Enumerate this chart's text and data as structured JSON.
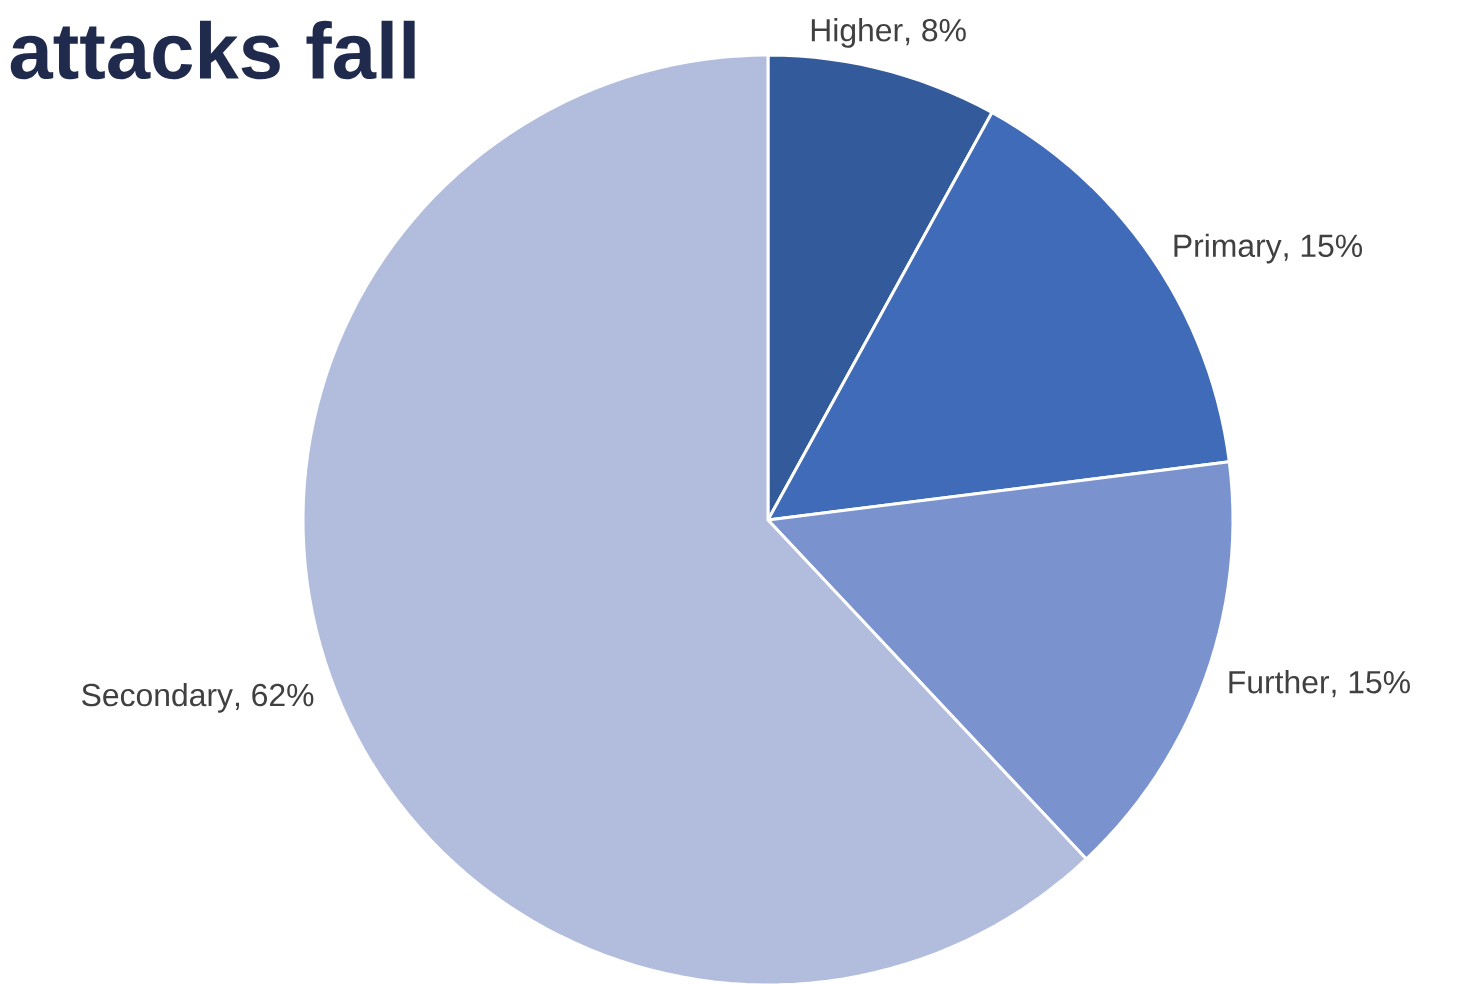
{
  "chart_data": {
    "type": "pie",
    "title": "attacks fall",
    "categories": [
      "Higher",
      "Primary",
      "Further",
      "Secondary"
    ],
    "values": [
      8,
      15,
      15,
      62
    ],
    "value_labels": [
      ", 8%",
      ", 15%",
      ", 15%",
      ", 62%"
    ],
    "colors": [
      "#335a9a",
      "#3f6bb8",
      "#7a92ce",
      "#b2bddd"
    ]
  }
}
